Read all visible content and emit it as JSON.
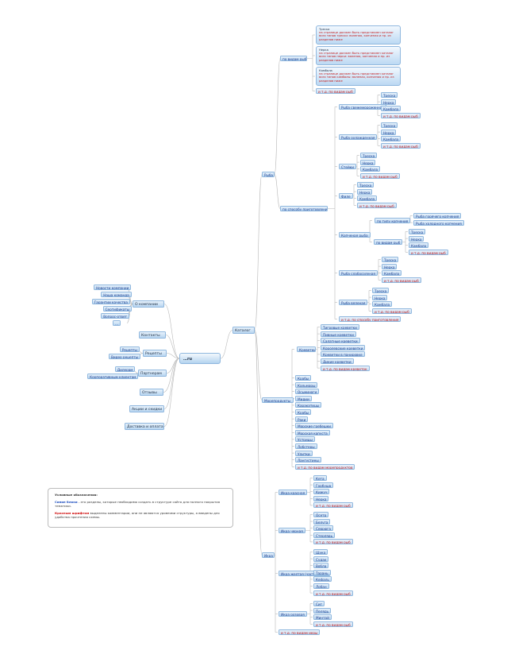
{
  "colors": {
    "node_fill": "#b9d6f1",
    "node_border": "#8fb7de",
    "blue_text": "#1f3f8f",
    "red_text": "#c41a1a",
    "line": "#b8b8b8"
  },
  "root": {
    "label": "…ru"
  },
  "left": {
    "about": {
      "label": "О компании",
      "children": [
        "Новости компании",
        "Наша команда",
        "Гарантии качества",
        "Сертификаты",
        "Вопрос-ответ",
        "..."
      ]
    },
    "contacts": {
      "label": "Контакты"
    },
    "recipes": {
      "label": "Рецепты",
      "children": [
        "Рецепты",
        "Видео рецепты"
      ]
    },
    "partners": {
      "label": "Партнерам",
      "children": [
        "Дилерам",
        "Корпоративным клиентам"
      ]
    },
    "reviews": {
      "label": "Отзывы"
    },
    "promos": {
      "label": "Акции и скидки"
    },
    "delivery": {
      "label": "Доставка и оплата"
    }
  },
  "catalog": {
    "label": "Каталог",
    "fish": {
      "label": "Рыба",
      "by_type": {
        "label": "по видам рыб",
        "notes": [
          {
            "title": "Треска",
            "text": "на странице должен быть представлен каталог всех типов трески: вяленая, копченая и пр. из разделов ниже"
          },
          {
            "title": "Нерка",
            "text": "на странице должен быть представлен каталог всех типов нерки: вяленая, копченая и пр. из разделов ниже"
          },
          {
            "title": "Камбала",
            "text": "на странице должен быть представлен каталог всех типов камбалы: вяленая, копченая и пр. из разделов ниже"
          }
        ],
        "etc": "и т.д. по видам рыб"
      },
      "by_cooking": {
        "label": "по способу приготовления",
        "groups": [
          {
            "label": "Рыба свежемороженная",
            "items": [
              "Треска",
              "Нерка",
              "Камбала"
            ],
            "etc": "и т.д. по видам рыб"
          },
          {
            "label": "Рыба охлажденная",
            "items": [
              "Треска",
              "Нерка",
              "Камбала"
            ],
            "etc": "и т.д. по видам рыб"
          },
          {
            "label": "Стейки",
            "items": [
              "Треска",
              "Нерка",
              "Камбала"
            ],
            "etc": "и т.д. по видам рыб"
          },
          {
            "label": "Филе",
            "items": [
              "Треска",
              "Нерка",
              "Камбала"
            ],
            "etc": "и т.д. по видам рыб"
          },
          {
            "label": "Копченая рыба",
            "by_smoke": {
              "label": "по типу копчения",
              "items": [
                "Рыба горячего копчения",
                "Рыба холодного копчения"
              ]
            },
            "by_kind": {
              "label": "по видам рыб",
              "items": [
                "Треска",
                "Нерка",
                "Камбала"
              ],
              "etc": "и т.д. по видам рыб"
            }
          },
          {
            "label": "Рыба слабосоленая",
            "items": [
              "Треска",
              "Нерка",
              "Камбала"
            ],
            "etc": "и т.д. по видам рыб"
          },
          {
            "label": "Рыба вяленая",
            "items": [
              "Треска",
              "Нерка",
              "Камбала"
            ],
            "etc": "и т.д. по видам рыб"
          }
        ],
        "etc": "и т.д. по способу приготовления"
      }
    },
    "seafood": {
      "label": "Морепродукты",
      "shrimp": {
        "label": "Креветки",
        "items": [
          "Тигровые креветки",
          "Пивные креветки",
          "Салатные креветки",
          "Королевские креветки",
          "Креветки в панировке",
          "Дикие креветки"
        ],
        "etc": "и т.д. по видам креветок"
      },
      "items": [
        "Крабы",
        "Кальмары",
        "Осьминоги",
        "Мидии",
        "Каракатицы",
        "Крабы",
        "Раки",
        "Морские гребешки",
        "Морская капуста",
        "Устрицы",
        "Лобстеры",
        "Улитки",
        "Лангустины"
      ],
      "etc": "и т.д. по видам морепродуктов"
    },
    "caviar": {
      "label": "Икра",
      "groups": [
        {
          "label": "Икра красная",
          "items": [
            "Кета",
            "Горбуша",
            "Кижуч",
            "Нерка"
          ],
          "etc": "и т.д. по видам рыб"
        },
        {
          "label": "Икра черная",
          "items": [
            "Осетр",
            "Белуга",
            "Севрюга",
            "Стерлядь"
          ],
          "etc": "и т.д. по видам рыб"
        },
        {
          "label": "Икра желтая (частиковая)",
          "items": [
            "Щука",
            "Судак",
            "Вобла",
            "Тарань",
            "Кефаль",
            "Лобан"
          ],
          "etc": "и т.д. по видам рыб"
        },
        {
          "label": "Икра розовая",
          "items": [
            "Сиг",
            "Пелядь",
            "Минтай"
          ],
          "etc": "и т.д. по видам рыб"
        }
      ],
      "etc": "и т.д. по видам икры"
    }
  },
  "legend": {
    "title": "Условные обозначения:",
    "blue_key": "Синие блоки",
    "blue_text": " - это разделы, которые необходимо создать в структуре сайта для полного покрытия тематики.",
    "red_key": "Красным шрифтом",
    "red_text": " выделены комментарии, они не являются уровнями структуры, а введены для удобства прочтения схемы."
  }
}
